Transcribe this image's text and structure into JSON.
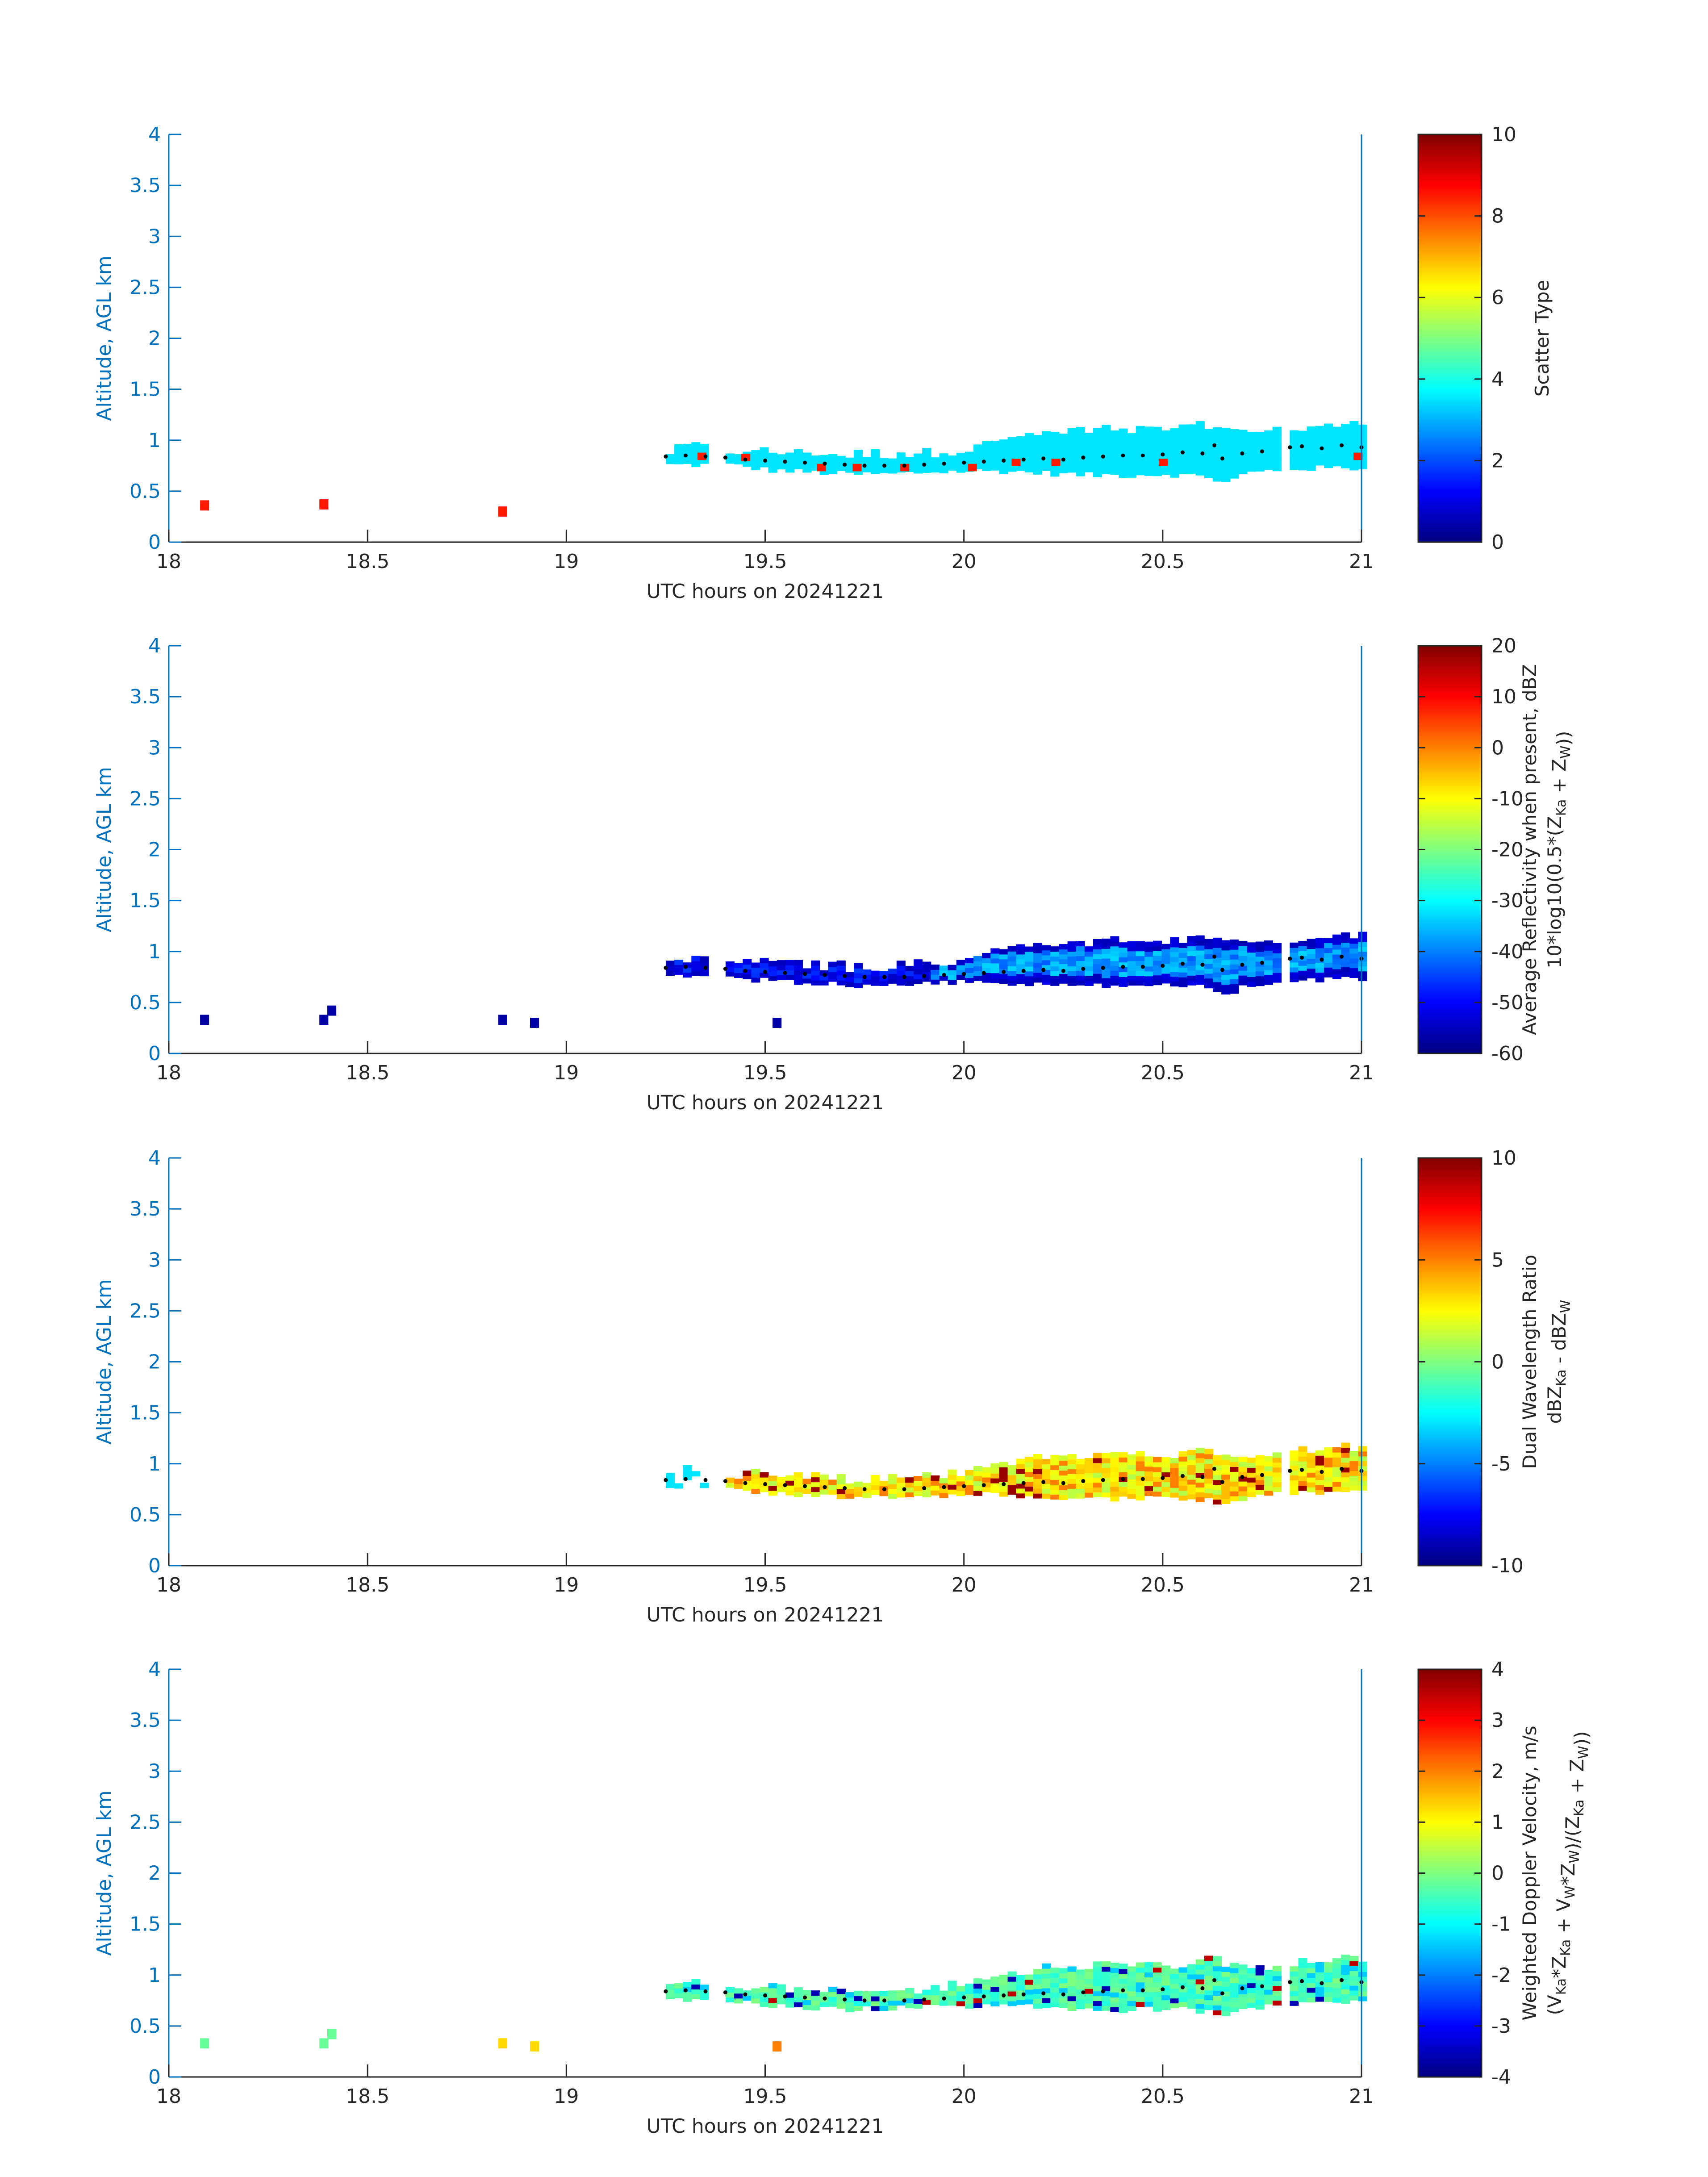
{
  "figure": {
    "xlabel": "UTC hours on 20241221",
    "ylabel": "Altitude, AGL km",
    "axis_color": "#0072BD"
  },
  "chart_data": [
    {
      "type": "heatmap",
      "name": "Scatter Type",
      "xlabel": "UTC hours on 20241221",
      "ylabel": "Altitude, AGL km",
      "xlim": [
        18,
        21
      ],
      "ylim": [
        0,
        4
      ],
      "xticks": [
        "18",
        "18.5",
        "19",
        "19.5",
        "20",
        "20.5",
        "21"
      ],
      "yticks": [
        "0",
        "0.5",
        "1",
        "1.5",
        "2",
        "2.5",
        "3",
        "3.5",
        "4"
      ],
      "colorbar": {
        "label_lines": [
          "Scatter Type"
        ],
        "range": [
          0,
          10
        ],
        "ticks": [
          "0",
          "2",
          "4",
          "6",
          "8",
          "10"
        ]
      },
      "layer_value": 3.5,
      "isolated_cells": [
        {
          "x": 18.09,
          "y": 0.36,
          "v": 8.5
        },
        {
          "x": 18.39,
          "y": 0.37,
          "v": 8.5
        },
        {
          "x": 18.84,
          "y": 0.3,
          "v": 8.5
        }
      ],
      "speckles": [
        {
          "x": 19.33,
          "y": 0.83,
          "v": 8.5
        },
        {
          "x": 19.44,
          "y": 0.82,
          "v": 8.5
        },
        {
          "x": 19.63,
          "y": 0.72,
          "v": 8.5
        },
        {
          "x": 19.72,
          "y": 0.72,
          "v": 8.5
        },
        {
          "x": 19.84,
          "y": 0.72,
          "v": 8.5
        },
        {
          "x": 20.01,
          "y": 0.72,
          "v": 8.5
        },
        {
          "x": 20.12,
          "y": 0.77,
          "v": 8.5
        },
        {
          "x": 20.22,
          "y": 0.77,
          "v": 8.5
        },
        {
          "x": 20.49,
          "y": 0.77,
          "v": 8.5
        },
        {
          "x": 20.98,
          "y": 0.83,
          "v": 8.5
        }
      ]
    },
    {
      "type": "heatmap",
      "name": "Average Reflectivity",
      "xlabel": "UTC hours on 20241221",
      "ylabel": "Altitude, AGL km",
      "xlim": [
        18,
        21
      ],
      "ylim": [
        0,
        4
      ],
      "xticks": [
        "18",
        "18.5",
        "19",
        "19.5",
        "20",
        "20.5",
        "21"
      ],
      "yticks": [
        "0",
        "0.5",
        "1",
        "1.5",
        "2",
        "2.5",
        "3",
        "3.5",
        "4"
      ],
      "colorbar": {
        "label_lines": [
          "Average Reflectivity when present, dBZ",
          "10*log10(0.5*(Z_Ka + Z_W))"
        ],
        "range": [
          -60,
          20
        ],
        "ticks": [
          "-60",
          "-50",
          "-40",
          "-30",
          "-20",
          "-10",
          "0",
          "10",
          "20"
        ]
      },
      "layer_core": -38,
      "layer_edge": -56,
      "isolated_cells": [
        {
          "x": 18.09,
          "y": 0.33,
          "v": -57
        },
        {
          "x": 18.39,
          "y": 0.33,
          "v": -57
        },
        {
          "x": 18.41,
          "y": 0.42,
          "v": -57
        },
        {
          "x": 18.84,
          "y": 0.33,
          "v": -57
        },
        {
          "x": 18.92,
          "y": 0.3,
          "v": -57
        },
        {
          "x": 19.53,
          "y": 0.3,
          "v": -57
        }
      ]
    },
    {
      "type": "heatmap",
      "name": "Dual Wavelength Ratio",
      "xlabel": "UTC hours on 20241221",
      "ylabel": "Altitude, AGL km",
      "xlim": [
        18,
        21
      ],
      "ylim": [
        0,
        4
      ],
      "xticks": [
        "18",
        "18.5",
        "19",
        "19.5",
        "20",
        "20.5",
        "21"
      ],
      "yticks": [
        "0",
        "0.5",
        "1",
        "1.5",
        "2",
        "2.5",
        "3",
        "3.5",
        "4"
      ],
      "colorbar": {
        "label_lines": [
          "Dual Wavelength Ratio",
          "dBZ_Ka - dBZ_W"
        ],
        "range": [
          -10,
          10
        ],
        "ticks": [
          "-10",
          "-5",
          "0",
          "5",
          "10"
        ]
      },
      "layer_value": 2.5,
      "isolated_cells": []
    },
    {
      "type": "heatmap",
      "name": "Weighted Doppler Velocity",
      "xlabel": "UTC hours on 20241221",
      "ylabel": "Altitude, AGL km",
      "xlim": [
        18,
        21
      ],
      "ylim": [
        0,
        4
      ],
      "xticks": [
        "18",
        "18.5",
        "19",
        "19.5",
        "20",
        "20.5",
        "21"
      ],
      "yticks": [
        "0",
        "0.5",
        "1",
        "1.5",
        "2",
        "2.5",
        "3",
        "3.5",
        "4"
      ],
      "colorbar": {
        "label_lines": [
          "Weighted Doppler Velocity, m/s",
          "(V_Ka*Z_Ka + V_W*Z_W)/(Z_Ka + Z_W))"
        ],
        "range": [
          -4,
          4
        ],
        "ticks": [
          "-4",
          "-3",
          "-2",
          "-1",
          "0",
          "1",
          "2",
          "3",
          "4"
        ]
      },
      "layer_value": -0.4,
      "isolated_cells": [
        {
          "x": 18.09,
          "y": 0.33,
          "v": -0.2
        },
        {
          "x": 18.39,
          "y": 0.33,
          "v": -0.2
        },
        {
          "x": 18.41,
          "y": 0.42,
          "v": -0.2
        },
        {
          "x": 18.84,
          "y": 0.33,
          "v": 1.3
        },
        {
          "x": 18.92,
          "y": 0.3,
          "v": 1.3
        },
        {
          "x": 19.53,
          "y": 0.3,
          "v": 2.0
        }
      ]
    }
  ],
  "cloud_layer": {
    "segments": [
      [
        19.25,
        19.35
      ],
      [
        19.39,
        20.78
      ],
      [
        20.8,
        21.0
      ]
    ],
    "base": [
      [
        19.25,
        0.76
      ],
      [
        19.4,
        0.76
      ],
      [
        19.5,
        0.71
      ],
      [
        19.6,
        0.69
      ],
      [
        19.7,
        0.67
      ],
      [
        19.8,
        0.67
      ],
      [
        19.9,
        0.69
      ],
      [
        20.0,
        0.7
      ],
      [
        20.1,
        0.7
      ],
      [
        20.2,
        0.68
      ],
      [
        20.3,
        0.66
      ],
      [
        20.4,
        0.66
      ],
      [
        20.5,
        0.67
      ],
      [
        20.6,
        0.65
      ],
      [
        20.65,
        0.58
      ],
      [
        20.7,
        0.68
      ],
      [
        20.8,
        0.72
      ],
      [
        20.9,
        0.73
      ],
      [
        21.0,
        0.73
      ]
    ],
    "top": [
      [
        19.25,
        0.88
      ],
      [
        19.3,
        0.92
      ],
      [
        19.4,
        0.88
      ],
      [
        19.5,
        0.87
      ],
      [
        19.6,
        0.85
      ],
      [
        19.7,
        0.83
      ],
      [
        19.8,
        0.84
      ],
      [
        19.9,
        0.85
      ],
      [
        20.0,
        0.9
      ],
      [
        20.1,
        1.0
      ],
      [
        20.2,
        1.05
      ],
      [
        20.3,
        1.07
      ],
      [
        20.4,
        1.08
      ],
      [
        20.5,
        1.08
      ],
      [
        20.6,
        1.12
      ],
      [
        20.7,
        1.06
      ],
      [
        20.8,
        1.08
      ],
      [
        20.9,
        1.12
      ],
      [
        21.0,
        1.15
      ]
    ]
  },
  "cloud_base_points": [
    [
      19.25,
      0.84
    ],
    [
      19.3,
      0.85
    ],
    [
      19.35,
      0.84
    ],
    [
      19.4,
      0.83
    ],
    [
      19.45,
      0.81
    ],
    [
      19.5,
      0.8
    ],
    [
      19.55,
      0.79
    ],
    [
      19.6,
      0.78
    ],
    [
      19.65,
      0.77
    ],
    [
      19.7,
      0.76
    ],
    [
      19.75,
      0.75
    ],
    [
      19.8,
      0.75
    ],
    [
      19.85,
      0.75
    ],
    [
      19.9,
      0.76
    ],
    [
      19.95,
      0.77
    ],
    [
      20.0,
      0.78
    ],
    [
      20.05,
      0.79
    ],
    [
      20.1,
      0.8
    ],
    [
      20.15,
      0.81
    ],
    [
      20.2,
      0.82
    ],
    [
      20.25,
      0.81
    ],
    [
      20.3,
      0.83
    ],
    [
      20.35,
      0.84
    ],
    [
      20.4,
      0.85
    ],
    [
      20.45,
      0.85
    ],
    [
      20.5,
      0.86
    ],
    [
      20.55,
      0.88
    ],
    [
      20.6,
      0.87
    ],
    [
      20.63,
      0.95
    ],
    [
      20.65,
      0.82
    ],
    [
      20.7,
      0.87
    ],
    [
      20.75,
      0.89
    ],
    [
      20.82,
      0.93
    ],
    [
      20.85,
      0.94
    ],
    [
      20.9,
      0.92
    ],
    [
      20.95,
      0.95
    ],
    [
      21.0,
      0.93
    ]
  ]
}
